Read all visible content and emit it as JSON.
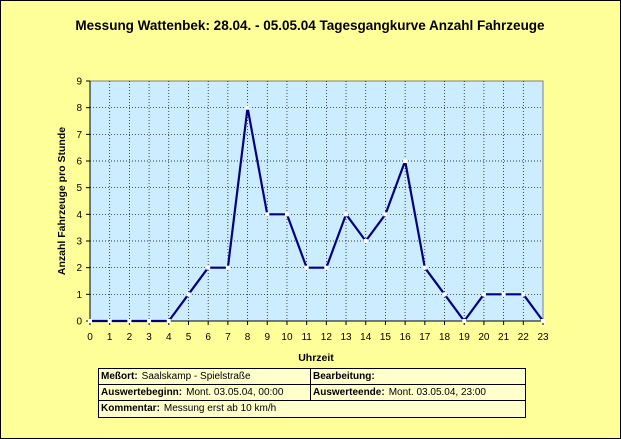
{
  "title": "Messung Wattenbek: 28.04. -  05.05.04 Tagesgangkurve Anzahl Fahrzeuge",
  "chart_data": {
    "type": "line",
    "title": "Messung Wattenbek: 28.04. -  05.05.04 Tagesgangkurve Anzahl Fahrzeuge",
    "xlabel": "Uhrzeit",
    "ylabel": "Anzahl Fahrzeuge pro Stunde",
    "x": [
      0,
      1,
      2,
      3,
      4,
      5,
      6,
      7,
      8,
      9,
      10,
      11,
      12,
      13,
      14,
      15,
      16,
      17,
      18,
      19,
      20,
      21,
      22,
      23
    ],
    "x_tick_labels": [
      "0",
      "1",
      "2",
      "3",
      "4",
      "5",
      "6",
      "7",
      "8",
      "9",
      "10",
      "11",
      "12",
      "13",
      "14",
      "15",
      "16",
      "17",
      "18",
      "19",
      "20",
      "21",
      "22",
      "23"
    ],
    "y_tick_labels": [
      "0",
      "1",
      "2",
      "3",
      "4",
      "5",
      "6",
      "7",
      "8",
      "9"
    ],
    "series": [
      {
        "values": [
          0,
          0,
          0,
          0,
          0,
          1,
          2,
          2,
          8,
          4,
          4,
          2,
          2,
          4,
          3,
          4,
          6,
          2,
          1,
          0,
          1,
          1,
          1,
          0
        ]
      }
    ],
    "xlim": [
      0,
      23
    ],
    "ylim": [
      0,
      9
    ],
    "grid": true,
    "legend": "none",
    "colors": {
      "line": "#000080",
      "plot_background": "#ccecff",
      "chart_background": "#ffff99",
      "marker": "#ffffff",
      "grid": "#000000"
    }
  },
  "info": {
    "messort_label": "Meßort:",
    "messort_value": "Saalskamp - Spielstraße",
    "bearbeitung_label": "Bearbeitung:",
    "bearbeitung_value": "",
    "beginn_label": "Auswertebeginn:",
    "beginn_value": "Mont. 03.05.04, 00:00",
    "ende_label": "Auswerteende:",
    "ende_value": "Mont. 03.05.04, 23:00",
    "kommentar_label": "Kommentar:",
    "kommentar_value": "Messung erst ab 10 km/h"
  }
}
